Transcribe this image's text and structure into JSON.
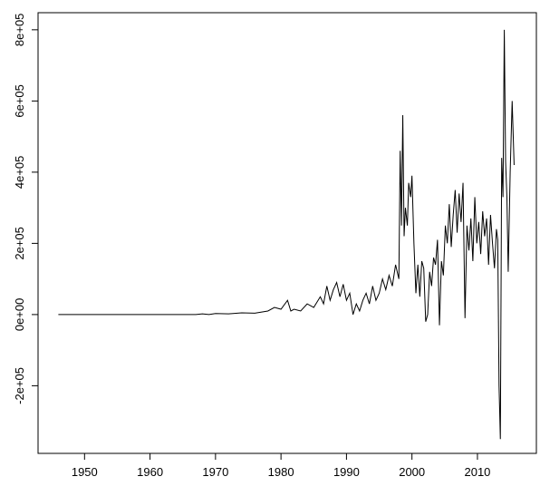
{
  "chart_data": {
    "type": "line",
    "x": [
      1946,
      1967,
      1968,
      1969,
      1970,
      1972,
      1974,
      1976,
      1978,
      1979,
      1980,
      1981,
      1981.5,
      1982,
      1983,
      1984,
      1985,
      1986,
      1986.5,
      1987,
      1987.5,
      1988,
      1988.5,
      1989,
      1989.5,
      1990,
      1990.5,
      1991,
      1991.5,
      1992,
      1992.5,
      1993,
      1993.5,
      1994,
      1994.5,
      1995,
      1995.5,
      1996,
      1996.5,
      1997,
      1997.5,
      1998,
      1998.2,
      1998.4,
      1998.6,
      1998.8,
      1999,
      1999.3,
      1999.5,
      1999.8,
      2000,
      2000.3,
      2000.6,
      2000.9,
      2001.2,
      2001.5,
      2001.8,
      2002.1,
      2002.4,
      2002.7,
      2003,
      2003.3,
      2003.6,
      2003.9,
      2004.2,
      2004.5,
      2004.8,
      2005.1,
      2005.4,
      2005.7,
      2006,
      2006.3,
      2006.6,
      2006.9,
      2007.2,
      2007.5,
      2007.8,
      2008.1,
      2008.4,
      2008.7,
      2009,
      2009.3,
      2009.6,
      2009.9,
      2010.2,
      2010.5,
      2010.8,
      2011.1,
      2011.4,
      2011.7,
      2012,
      2012.3,
      2012.6,
      2012.9,
      2013.1,
      2013.3,
      2013.5,
      2013.7,
      2013.9,
      2014.1,
      2014.3,
      2014.5,
      2014.7,
      2015,
      2015.3,
      2015.6
    ],
    "series": [
      {
        "color": "#000000",
        "values": [
          0,
          0,
          2000,
          0,
          3000,
          2000,
          5000,
          4000,
          10000,
          20000,
          15000,
          40000,
          10000,
          15000,
          10000,
          30000,
          20000,
          50000,
          30000,
          80000,
          40000,
          70000,
          90000,
          50000,
          85000,
          40000,
          60000,
          0,
          30000,
          10000,
          40000,
          60000,
          30000,
          80000,
          40000,
          60000,
          100000,
          70000,
          110000,
          80000,
          140000,
          100000,
          460000,
          250000,
          560000,
          220000,
          300000,
          250000,
          370000,
          330000,
          390000,
          200000,
          60000,
          140000,
          50000,
          150000,
          130000,
          -20000,
          0,
          120000,
          80000,
          160000,
          140000,
          210000,
          -30000,
          150000,
          110000,
          250000,
          200000,
          310000,
          190000,
          280000,
          350000,
          230000,
          340000,
          260000,
          370000,
          -10000,
          250000,
          180000,
          270000,
          150000,
          330000,
          200000,
          260000,
          170000,
          290000,
          220000,
          270000,
          140000,
          280000,
          200000,
          130000,
          240000,
          210000,
          -200000,
          -350000,
          440000,
          330000,
          800000,
          430000,
          330000,
          120000,
          400000,
          600000,
          420000
        ]
      }
    ],
    "xlim": [
      1942.9,
      2019.0
    ],
    "ylim": [
      -390000,
      848000
    ],
    "xticks": [
      1950,
      1960,
      1970,
      1980,
      1990,
      2000,
      2010
    ],
    "yticks": [
      {
        "value": -200000,
        "label": "-2e+05"
      },
      {
        "value": 0,
        "label": "0e+00"
      },
      {
        "value": 200000,
        "label": "2e+05"
      },
      {
        "value": 400000,
        "label": "4e+05"
      },
      {
        "value": 600000,
        "label": "6e+05"
      },
      {
        "value": 800000,
        "label": "8e+05"
      }
    ]
  }
}
